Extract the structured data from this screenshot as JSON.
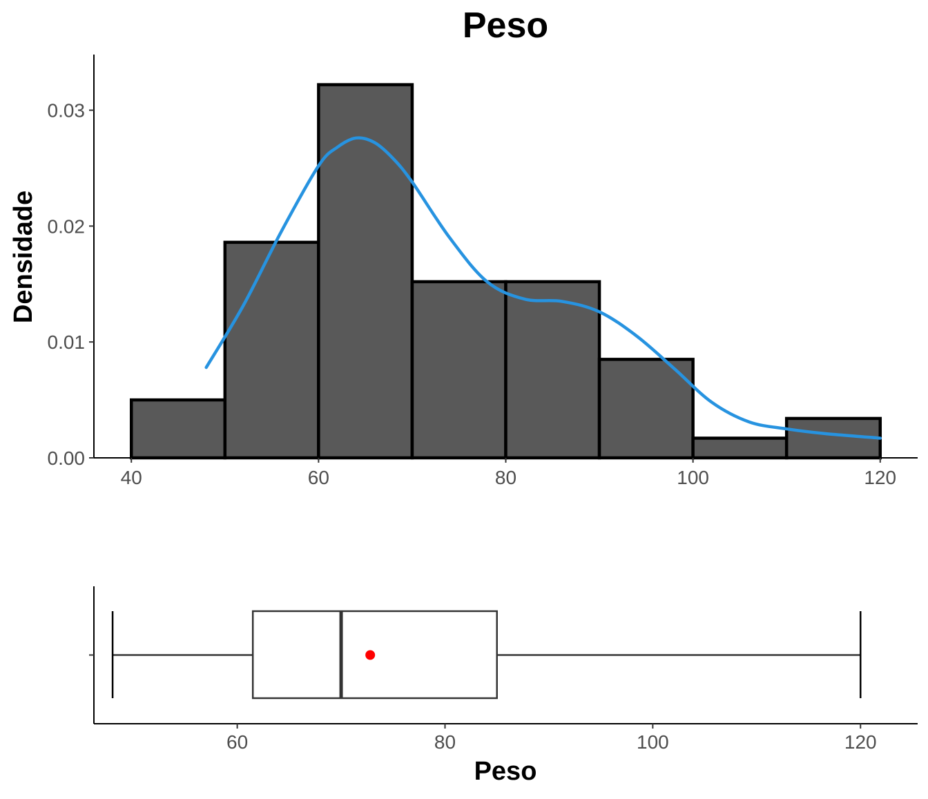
{
  "chart_data": [
    {
      "type": "bar",
      "subtype": "histogram",
      "title": "Peso",
      "xlabel": "",
      "ylabel": "Densidade",
      "bins": [
        {
          "x0": 40,
          "x1": 50,
          "density": 0.005
        },
        {
          "x0": 50,
          "x1": 60,
          "density": 0.0186
        },
        {
          "x0": 60,
          "x1": 70,
          "density": 0.0322
        },
        {
          "x0": 70,
          "x1": 80,
          "density": 0.0152
        },
        {
          "x0": 80,
          "x1": 90,
          "density": 0.0152
        },
        {
          "x0": 90,
          "x1": 100,
          "density": 0.0085
        },
        {
          "x0": 100,
          "x1": 110,
          "density": 0.0017
        },
        {
          "x0": 110,
          "x1": 120,
          "density": 0.0034
        }
      ],
      "xlim": [
        36,
        124
      ],
      "ylim": [
        0,
        0.0348
      ],
      "xticks": [
        40,
        60,
        80,
        100,
        120
      ],
      "xtick_labels": [
        "40",
        "60",
        "80",
        "100",
        "120"
      ],
      "yticks": [
        0.0,
        0.01,
        0.02,
        0.03
      ],
      "ytick_labels": [
        "0.00",
        "0.01",
        "0.02",
        "0.03"
      ],
      "grid": false,
      "bar_color": "#595959",
      "bar_edge_color": "#000000",
      "density_curve": {
        "color": "#2793e0",
        "x": [
          48,
          52,
          56,
          60,
          62,
          64,
          66,
          68,
          70,
          74,
          78,
          82,
          86,
          90,
          94,
          98,
          102,
          106,
          110,
          114,
          120
        ],
        "y": [
          0.0078,
          0.0132,
          0.0195,
          0.0252,
          0.0268,
          0.0276,
          0.0272,
          0.0258,
          0.0238,
          0.019,
          0.0152,
          0.0137,
          0.0135,
          0.0126,
          0.0105,
          0.0077,
          0.0048,
          0.0031,
          0.0025,
          0.0021,
          0.0017
        ]
      }
    },
    {
      "type": "boxplot",
      "xlabel": "Peso",
      "ylabel": "",
      "min": 48,
      "q1": 61.5,
      "median": 70,
      "q3": 85,
      "max": 120,
      "mean": 72.8,
      "mean_color": "#ff0000",
      "xlim": [
        46.2,
        125.5
      ],
      "xticks": [
        60,
        80,
        100,
        120
      ],
      "xtick_labels": [
        "60",
        "80",
        "100",
        "120"
      ],
      "grid": false
    }
  ]
}
